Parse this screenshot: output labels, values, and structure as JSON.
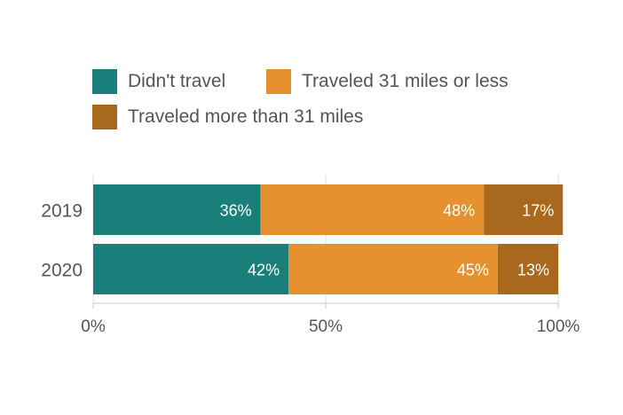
{
  "chart_data": {
    "type": "bar",
    "orientation": "horizontal",
    "stacked": true,
    "categories": [
      "2019",
      "2020"
    ],
    "series": [
      {
        "name": "Didn't travel",
        "color": "#1a7f7b",
        "values": [
          36,
          42
        ],
        "labels": [
          "36%",
          "42%"
        ]
      },
      {
        "name": "Traveled 31 miles or less",
        "color": "#e69130",
        "values": [
          48,
          45
        ],
        "labels": [
          "48%",
          "45%"
        ]
      },
      {
        "name": "Traveled more than 31 miles",
        "color": "#a8691f",
        "values": [
          17,
          13
        ],
        "labels": [
          "17%",
          "13%"
        ]
      }
    ],
    "xlim": [
      0,
      100
    ],
    "xticks": [
      0,
      50,
      100
    ],
    "xtick_labels": [
      "0%",
      "50%",
      "100%"
    ],
    "grid": true,
    "legend_position": "top"
  }
}
